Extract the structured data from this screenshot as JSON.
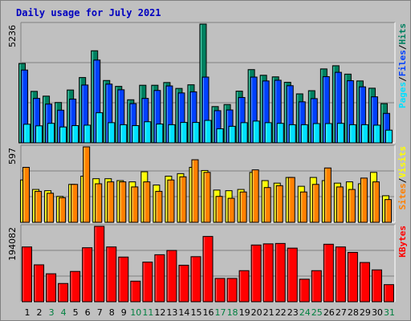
{
  "title": "Daily usage for July 2021",
  "chart_data": [
    {
      "type": "bar",
      "categories": [
        "1",
        "2",
        "3",
        "4",
        "5",
        "6",
        "7",
        "8",
        "9",
        "10",
        "11",
        "12",
        "13",
        "14",
        "15",
        "16",
        "17",
        "18",
        "19",
        "20",
        "21",
        "22",
        "23",
        "24",
        "25",
        "26",
        "27",
        "28",
        "29",
        "30",
        "31"
      ],
      "weekend_categories": [
        "3",
        "4",
        "10",
        "11",
        "17",
        "18",
        "24",
        "25",
        "31"
      ],
      "ymax_label": "5236",
      "ylim": [
        0,
        5236
      ],
      "legend": [
        "Pages",
        "/",
        "Files",
        "/",
        "Hits"
      ],
      "series": [
        {
          "name": "Hits",
          "color": "#008060",
          "values": [
            3500,
            2270,
            2060,
            1780,
            2330,
            2880,
            4060,
            2750,
            2490,
            1900,
            2540,
            2540,
            2660,
            2400,
            2560,
            5236,
            1600,
            1690,
            2280,
            3230,
            2980,
            2910,
            2670,
            2160,
            2300,
            3260,
            3400,
            3030,
            2730,
            2410,
            1730
          ]
        },
        {
          "name": "Files",
          "color": "#0040ff",
          "values": [
            3210,
            1960,
            1710,
            1440,
            1930,
            2550,
            3650,
            2590,
            2340,
            1730,
            1960,
            2310,
            2510,
            2200,
            2250,
            2900,
            1420,
            1450,
            2000,
            2900,
            2730,
            2760,
            2520,
            1810,
            1950,
            2920,
            3110,
            2740,
            2470,
            2030,
            1300
          ]
        },
        {
          "name": "Pages",
          "color": "#00e0ff",
          "values": [
            820,
            750,
            860,
            700,
            760,
            780,
            1330,
            890,
            800,
            760,
            930,
            830,
            800,
            900,
            900,
            990,
            620,
            730,
            890,
            960,
            890,
            860,
            800,
            800,
            850,
            850,
            860,
            800,
            800,
            780,
            560
          ]
        }
      ]
    },
    {
      "type": "bar",
      "categories": [
        "1",
        "2",
        "3",
        "4",
        "5",
        "6",
        "7",
        "8",
        "9",
        "10",
        "11",
        "12",
        "13",
        "14",
        "15",
        "16",
        "17",
        "18",
        "19",
        "20",
        "21",
        "22",
        "23",
        "24",
        "25",
        "26",
        "27",
        "28",
        "29",
        "30",
        "31"
      ],
      "ymax_label": "597",
      "ylim": [
        0,
        597
      ],
      "legend": [
        "Sites",
        "/",
        "Visits"
      ],
      "series": [
        {
          "name": "Visits",
          "color": "#ffff00",
          "values": [
            335,
            260,
            250,
            205,
            300,
            365,
            345,
            345,
            330,
            320,
            400,
            295,
            365,
            385,
            435,
            410,
            255,
            250,
            260,
            395,
            330,
            310,
            355,
            285,
            355,
            330,
            310,
            320,
            305,
            395,
            210
          ]
        },
        {
          "name": "Sites",
          "color": "#ff8000",
          "values": [
            435,
            245,
            230,
            195,
            300,
            597,
            305,
            320,
            320,
            280,
            320,
            245,
            335,
            360,
            495,
            395,
            205,
            190,
            240,
            415,
            275,
            290,
            355,
            240,
            300,
            430,
            280,
            260,
            350,
            320,
            180
          ]
        }
      ]
    },
    {
      "type": "bar",
      "categories": [
        "1",
        "2",
        "3",
        "4",
        "5",
        "6",
        "7",
        "8",
        "9",
        "10",
        "11",
        "12",
        "13",
        "14",
        "15",
        "16",
        "17",
        "18",
        "19",
        "20",
        "21",
        "22",
        "23",
        "24",
        "25",
        "26",
        "27",
        "28",
        "29",
        "30",
        "31"
      ],
      "ymax_label": "194082",
      "ylim": [
        0,
        194082
      ],
      "legend": [
        "KBytes"
      ],
      "series": [
        {
          "name": "KBytes",
          "color": "#ff0000",
          "values": [
            141000,
            95000,
            72000,
            47000,
            78000,
            139000,
            194082,
            141000,
            115000,
            53000,
            102000,
            121000,
            132000,
            94000,
            116000,
            168000,
            60000,
            60000,
            80000,
            146000,
            149000,
            150000,
            138000,
            58000,
            80000,
            148000,
            141000,
            127000,
            101000,
            82000,
            44000
          ]
        }
      ]
    }
  ]
}
